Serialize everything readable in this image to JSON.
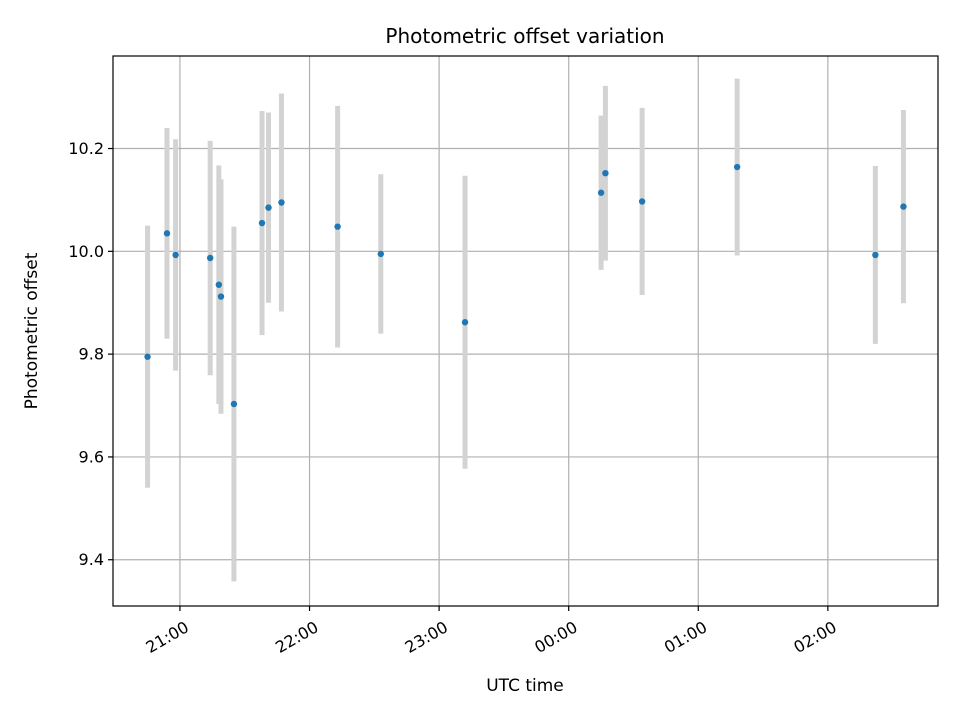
{
  "chart_data": {
    "type": "scatter",
    "title": "Photometric offset variation",
    "xlabel": "UTC time",
    "ylabel": "Photometric offset",
    "x_axis_kind": "time",
    "xlim": [
      "20:29",
      "02:51"
    ],
    "ylim": [
      9.31,
      10.38
    ],
    "x_ticks": [
      "21:00",
      "22:00",
      "23:00",
      "00:00",
      "01:00",
      "02:00"
    ],
    "y_ticks": [
      9.4,
      9.6,
      9.8,
      10.0,
      10.2
    ],
    "y_tick_labels": [
      "9.4",
      "9.6",
      "9.8",
      "10.0",
      "10.2"
    ],
    "grid": true,
    "marker_color": "#1f77b4",
    "errorbar_color": "#d3d3d3",
    "points": [
      {
        "x": "20:45",
        "y": 9.795,
        "yerr": 0.255
      },
      {
        "x": "20:54",
        "y": 10.035,
        "yerr": 0.205
      },
      {
        "x": "20:58",
        "y": 9.993,
        "yerr": 0.225
      },
      {
        "x": "21:14",
        "y": 9.987,
        "yerr": 0.228
      },
      {
        "x": "21:18",
        "y": 9.935,
        "yerr": 0.232
      },
      {
        "x": "21:19",
        "y": 9.912,
        "yerr": 0.228
      },
      {
        "x": "21:25",
        "y": 9.703,
        "yerr": 0.345
      },
      {
        "x": "21:38",
        "y": 10.055,
        "yerr": 0.218
      },
      {
        "x": "21:41",
        "y": 10.085,
        "yerr": 0.185
      },
      {
        "x": "21:47",
        "y": 10.095,
        "yerr": 0.212
      },
      {
        "x": "22:13",
        "y": 10.048,
        "yerr": 0.235
      },
      {
        "x": "22:33",
        "y": 9.995,
        "yerr": 0.155
      },
      {
        "x": "23:12",
        "y": 9.862,
        "yerr": 0.285
      },
      {
        "x": "00:15",
        "y": 10.114,
        "yerr": 0.15
      },
      {
        "x": "00:17",
        "y": 10.152,
        "yerr": 0.17
      },
      {
        "x": "00:34",
        "y": 10.097,
        "yerr": 0.182
      },
      {
        "x": "01:18",
        "y": 10.164,
        "yerr": 0.172
      },
      {
        "x": "02:22",
        "y": 9.993,
        "yerr": 0.173
      },
      {
        "x": "02:35",
        "y": 10.087,
        "yerr": 0.188
      }
    ]
  }
}
